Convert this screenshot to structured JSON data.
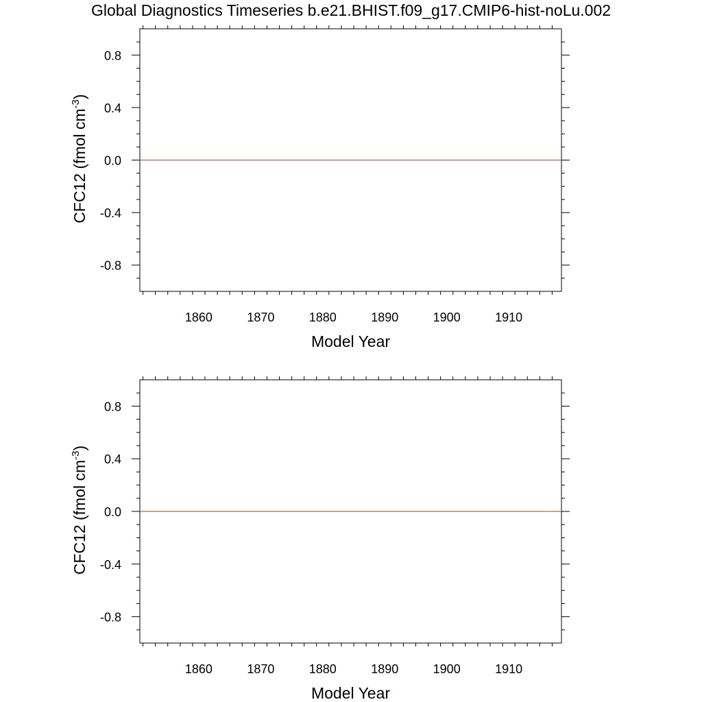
{
  "figure": {
    "title": "Global Diagnostics Timeseries b.e21.BHIST.f09_g17.CMIP6-hist-noLu.002"
  },
  "chart_data": [
    {
      "type": "line",
      "title": "",
      "xlabel": "Model Year",
      "ylabel": "CFC12 (fmol cm",
      "ylabel_superscript": "-3",
      "ylabel_suffix": ")",
      "xlim": [
        1850.5,
        1918.5
      ],
      "ylim": [
        -1.0,
        1.0
      ],
      "x_ticks": [
        1860,
        1870,
        1880,
        1890,
        1900,
        1910
      ],
      "x_tick_labels": [
        "1860",
        "1870",
        "1880",
        "1890",
        "1900",
        "1910"
      ],
      "y_ticks": [
        0.8,
        0.4,
        0.0,
        -0.4,
        -0.8
      ],
      "y_tick_labels": [
        "0.8",
        "0.4",
        "0.0",
        "-0.4",
        "-0.8"
      ],
      "grid": false,
      "zero_reference_line": true,
      "series": [
        {
          "x": [
            1850.5,
            1918.5
          ],
          "values": [
            0.0,
            0.0
          ],
          "color": "#b5634a"
        }
      ]
    },
    {
      "type": "line",
      "title": "",
      "xlabel": "Model Year",
      "ylabel": "CFC12 (fmol cm",
      "ylabel_superscript": "-3",
      "ylabel_suffix": ")",
      "xlim": [
        1850.5,
        1918.5
      ],
      "ylim": [
        -1.0,
        1.0
      ],
      "x_ticks": [
        1860,
        1870,
        1880,
        1890,
        1900,
        1910
      ],
      "x_tick_labels": [
        "1860",
        "1870",
        "1880",
        "1890",
        "1900",
        "1910"
      ],
      "y_ticks": [
        0.8,
        0.4,
        0.0,
        -0.4,
        -0.8
      ],
      "y_tick_labels": [
        "0.8",
        "0.4",
        "0.0",
        "-0.4",
        "-0.8"
      ],
      "grid": false,
      "zero_reference_line": true,
      "series": [
        {
          "x": [
            1850.5,
            1918.5
          ],
          "values": [
            0.0,
            0.0
          ],
          "color": "#b5634a"
        }
      ]
    }
  ]
}
